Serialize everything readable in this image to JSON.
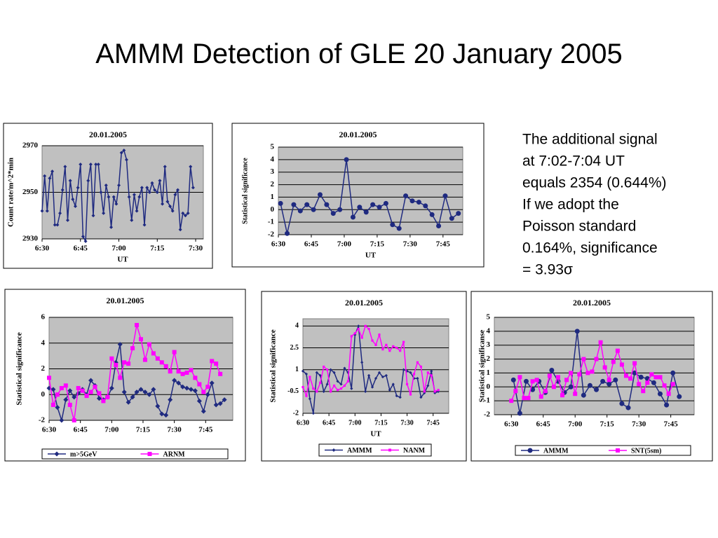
{
  "title": "AMMM Detection of GLE 20 January 2005",
  "note": [
    "The additional signal",
    "at 7:02-7:04 UT",
    "equals 2354 (0.644%)",
    "If we adopt the",
    "Poisson standard",
    "0.164%, significance",
    "= 3.93σ"
  ],
  "chart_data": [
    {
      "type": "line",
      "title": "20.01.2005",
      "xlabel": "UT",
      "ylabel": "Count rate/m^2*min",
      "x": [
        390,
        391,
        392,
        393,
        394,
        395,
        396,
        397,
        398,
        399,
        400,
        401,
        402,
        403,
        404,
        405,
        406,
        407,
        408,
        409,
        410,
        411,
        412,
        413,
        414,
        415,
        416,
        417,
        418,
        419,
        420,
        421,
        422,
        423,
        424,
        425,
        426,
        427,
        428,
        429,
        430,
        431,
        432,
        433,
        434,
        435,
        436,
        437,
        438,
        439,
        440,
        441,
        442,
        443,
        444,
        445,
        446,
        447,
        448,
        449
      ],
      "values": [
        2942,
        2957,
        2942,
        2956,
        2959,
        2936,
        2936,
        2941,
        2951,
        2961,
        2938,
        2955,
        2947,
        2944,
        2952,
        2962,
        2931,
        2929,
        2955,
        2962,
        2940,
        2962,
        2962,
        2950,
        2941,
        2953,
        2948,
        2935,
        2948,
        2945,
        2953,
        2967,
        2968,
        2964,
        2948,
        2938,
        2949,
        2942,
        2948,
        2952,
        2936,
        2952,
        2950,
        2954,
        2951,
        2950,
        2955,
        2945,
        2961,
        2946,
        2944,
        2942,
        2949,
        2951,
        2934,
        2941,
        2940,
        2941,
        2961,
        2952
      ],
      "color": "#1f2a80",
      "marker": "diamond",
      "xlim": [
        390,
        453
      ],
      "xticks": [
        {
          "value": 390,
          "label": "6:30"
        },
        {
          "value": 405,
          "label": "6:45"
        },
        {
          "value": 420,
          "label": "7:00"
        },
        {
          "value": 435,
          "label": "7:15"
        },
        {
          "value": 450,
          "label": "7:30"
        }
      ],
      "ylim": [
        2930,
        2970
      ],
      "yticks": [
        2930,
        2950,
        2970
      ],
      "grid": true
    },
    {
      "type": "line",
      "title": "20.01.2005",
      "xlabel": "UT",
      "ylabel": "Statistical significance",
      "x": [
        391,
        394,
        397,
        400,
        403,
        406,
        409,
        412,
        415,
        418,
        421,
        424,
        427,
        430,
        433,
        436,
        439,
        442,
        445,
        448,
        451,
        454,
        457,
        460,
        463,
        466,
        469,
        472
      ],
      "values": [
        0.5,
        -1.9,
        0.4,
        -0.1,
        0.4,
        0.0,
        1.2,
        0.4,
        -0.3,
        0.0,
        4.0,
        -0.6,
        0.2,
        -0.2,
        0.4,
        0.2,
        0.5,
        -1.2,
        -1.5,
        1.1,
        0.7,
        0.6,
        0.3,
        -0.4,
        -1.3,
        1.1,
        -0.7,
        -0.3
      ],
      "color": "#1f2a80",
      "marker": "circle",
      "xlim": [
        390,
        474
      ],
      "xticks": [
        {
          "value": 390,
          "label": "6:30"
        },
        {
          "value": 405,
          "label": "6:45"
        },
        {
          "value": 420,
          "label": "7:00"
        },
        {
          "value": 435,
          "label": "7:15"
        },
        {
          "value": 450,
          "label": "7:30"
        },
        {
          "value": 465,
          "label": "7:45"
        }
      ],
      "ylim": [
        -2,
        5
      ],
      "yticks": [
        -2,
        -1,
        0,
        1,
        2,
        3,
        4,
        5
      ],
      "grid": true
    },
    {
      "type": "line",
      "title": "20.01.2005",
      "ylabel": "Statistical significance",
      "series": [
        {
          "name": "m>5GeV",
          "color": "#1f2a80",
          "marker": "diamond",
          "x": [
            390,
            392,
            394,
            396,
            398,
            400,
            402,
            404,
            406,
            408,
            410,
            412,
            414,
            416,
            418,
            420,
            422,
            424,
            426,
            428,
            430,
            432,
            434,
            436,
            438,
            440,
            442,
            444,
            446,
            448,
            450,
            452,
            454,
            456,
            458,
            460,
            462,
            464,
            466,
            468,
            470,
            472,
            474
          ],
          "values": [
            0.5,
            0.4,
            -1.0,
            -2.0,
            -0.4,
            0.3,
            -0.2,
            0.1,
            0.4,
            0.0,
            1.1,
            0.7,
            -0.3,
            -0.4,
            -0.2,
            0.5,
            2.5,
            3.9,
            0.2,
            -0.6,
            -0.2,
            0.2,
            0.4,
            0.2,
            0.0,
            0.4,
            -0.9,
            -1.5,
            -1.6,
            -0.4,
            1.1,
            0.9,
            0.6,
            0.5,
            0.4,
            0.3,
            -0.5,
            -1.3,
            0.0,
            0.9,
            -0.8,
            -0.7,
            -0.4
          ]
        },
        {
          "name": "ARNM",
          "color": "#ff00ff",
          "marker": "square",
          "x": [
            390,
            392,
            394,
            396,
            398,
            400,
            402,
            404,
            406,
            408,
            410,
            412,
            414,
            416,
            418,
            420,
            422,
            424,
            426,
            428,
            430,
            432,
            434,
            436,
            438,
            440,
            442,
            444,
            446,
            448,
            450,
            452,
            454,
            456,
            458,
            460,
            462,
            464,
            466,
            468,
            470,
            472
          ],
          "values": [
            1.3,
            -0.8,
            0.0,
            0.5,
            0.7,
            -0.8,
            -2.0,
            0.5,
            0.3,
            -0.1,
            0.2,
            0.6,
            0.1,
            -0.5,
            -0.2,
            2.8,
            2.3,
            1.3,
            2.5,
            2.4,
            3.6,
            5.4,
            4.3,
            2.7,
            3.9,
            3.2,
            2.8,
            2.5,
            2.2,
            1.8,
            3.3,
            1.8,
            1.6,
            1.7,
            1.9,
            1.3,
            0.8,
            0.2,
            0.6,
            2.6,
            2.4,
            1.6
          ]
        }
      ],
      "xlim": [
        390,
        478
      ],
      "xticks": [
        {
          "value": 390,
          "label": "6:30"
        },
        {
          "value": 405,
          "label": "6:45"
        },
        {
          "value": 420,
          "label": "7:00"
        },
        {
          "value": 435,
          "label": "7:15"
        },
        {
          "value": 450,
          "label": "7:30"
        },
        {
          "value": 465,
          "label": "7:45"
        }
      ],
      "ylim": [
        -2,
        6
      ],
      "yticks": [
        -2,
        0,
        2,
        4,
        6
      ],
      "grid": true,
      "legend": "bottom"
    },
    {
      "type": "line",
      "title": "20.01.2005",
      "xlabel": "UT",
      "ylabel": "Statistical significance",
      "series": [
        {
          "name": "AMMM",
          "color": "#1f2a80",
          "marker": "diamond",
          "x": [
            390,
            392,
            394,
            396,
            398,
            400,
            402,
            404,
            406,
            408,
            410,
            412,
            414,
            416,
            418,
            420,
            422,
            424,
            426,
            428,
            430,
            432,
            434,
            436,
            438,
            440,
            442,
            444,
            446,
            448,
            450,
            452,
            454,
            456,
            458,
            460,
            462,
            464,
            466,
            468
          ],
          "values": [
            0.9,
            0.7,
            -1.0,
            -2.0,
            0.8,
            0.6,
            -0.5,
            0.0,
            1.0,
            0.8,
            0.2,
            0.0,
            1.1,
            0.8,
            -0.3,
            3.4,
            4.0,
            1.5,
            -0.5,
            0.6,
            -0.2,
            0.4,
            0.8,
            0.5,
            0.6,
            -0.4,
            0.0,
            -0.8,
            -0.9,
            1.0,
            0.9,
            0.8,
            0.4,
            0.4,
            -0.9,
            -0.6,
            -0.1,
            0.9,
            -0.6,
            -0.5
          ]
        },
        {
          "name": "NANM",
          "color": "#ff00ff",
          "marker": "square",
          "x": [
            390,
            392,
            394,
            396,
            398,
            400,
            402,
            404,
            406,
            408,
            410,
            412,
            414,
            416,
            418,
            420,
            422,
            424,
            426,
            428,
            430,
            432,
            434,
            436,
            438,
            440,
            442,
            444,
            446,
            448,
            450,
            452,
            454,
            456,
            458,
            460,
            462,
            464,
            466,
            468
          ],
          "values": [
            -0.2,
            -0.8,
            0.5,
            -0.3,
            -0.5,
            0.1,
            1.2,
            1.0,
            -0.5,
            -0.1,
            -0.4,
            -0.3,
            -0.1,
            0.2,
            3.3,
            3.5,
            3.8,
            3.2,
            4.0,
            3.8,
            3.0,
            2.7,
            3.4,
            2.4,
            2.7,
            2.3,
            2.6,
            2.5,
            2.3,
            2.9,
            0.0,
            -0.7,
            0.7,
            1.5,
            1.2,
            -0.5,
            0.8,
            0.6,
            -0.5,
            -0.4
          ]
        }
      ],
      "xlim": [
        390,
        474
      ],
      "xticks": [
        {
          "value": 390,
          "label": "6:30"
        },
        {
          "value": 405,
          "label": "6:45"
        },
        {
          "value": 420,
          "label": "7:00"
        },
        {
          "value": 435,
          "label": "7:15"
        },
        {
          "value": 450,
          "label": "7:30"
        },
        {
          "value": 465,
          "label": "7:45"
        }
      ],
      "ylim": [
        -2,
        4.5
      ],
      "yticks": [
        -2,
        -0.5,
        1,
        2.5,
        4
      ],
      "grid": true,
      "legend": "bottom"
    },
    {
      "type": "line",
      "title": "20.01.2005",
      "ylabel": "Statistical significanse",
      "series": [
        {
          "name": "AMMM",
          "color": "#1f2a80",
          "marker": "circle",
          "x": [
            391,
            394,
            397,
            400,
            403,
            406,
            409,
            412,
            415,
            418,
            421,
            424,
            427,
            430,
            433,
            436,
            439,
            442,
            445,
            448,
            451,
            454,
            457,
            460,
            463,
            466,
            469
          ],
          "values": [
            0.5,
            -1.9,
            0.4,
            -0.2,
            0.4,
            -0.4,
            1.2,
            0.4,
            -0.4,
            0.0,
            4.0,
            -0.6,
            0.1,
            -0.2,
            0.4,
            0.2,
            0.5,
            -1.2,
            -1.5,
            1.0,
            0.7,
            0.6,
            0.3,
            -0.5,
            -1.3,
            1.0,
            -0.7
          ]
        },
        {
          "name": "SNT(5sm)",
          "color": "#ff00ff",
          "marker": "square",
          "x": [
            390,
            392,
            394,
            396,
            398,
            400,
            402,
            404,
            406,
            408,
            410,
            412,
            414,
            416,
            418,
            420,
            422,
            424,
            426,
            428,
            430,
            432,
            434,
            436,
            438,
            440,
            442,
            444,
            446,
            448,
            450,
            452,
            454,
            456,
            458,
            460,
            462,
            464,
            466
          ],
          "values": [
            -1.0,
            -0.3,
            0.7,
            -0.8,
            -0.8,
            0.4,
            0.5,
            -0.7,
            -0.3,
            0.8,
            0.0,
            0.7,
            -0.6,
            0.5,
            1.0,
            -0.5,
            0.9,
            2.0,
            1.0,
            1.1,
            2.0,
            3.2,
            1.4,
            0.5,
            1.8,
            2.6,
            1.6,
            0.8,
            0.6,
            1.7,
            0.2,
            -0.3,
            0.3,
            0.9,
            0.7,
            0.7,
            0.1,
            -0.5,
            0.2
          ]
        }
      ],
      "xlim": [
        382,
        476
      ],
      "xticks": [
        {
          "value": 390,
          "label": "6:30"
        },
        {
          "value": 405,
          "label": "6:45"
        },
        {
          "value": 420,
          "label": "7:00"
        },
        {
          "value": 435,
          "label": "7:15"
        },
        {
          "value": 450,
          "label": "7:30"
        },
        {
          "value": 465,
          "label": "7:45"
        }
      ],
      "ylim": [
        -2,
        5
      ],
      "yticks": [
        -2,
        -1,
        0,
        1,
        2,
        3,
        4,
        5
      ],
      "grid": true,
      "legend": "bottom"
    }
  ]
}
